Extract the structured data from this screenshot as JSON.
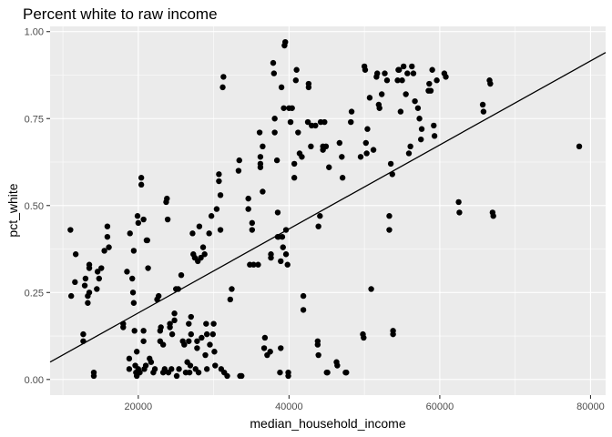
{
  "chart_data": {
    "type": "scatter",
    "title": "Percent white to raw income",
    "xlabel": "median_household_income",
    "ylabel": "pct_white",
    "xlim": [
      8300,
      82000
    ],
    "ylim": [
      -0.045,
      1.015
    ],
    "x_ticks": [
      20000,
      40000,
      60000,
      80000
    ],
    "x_tick_labels": [
      "20000",
      "40000",
      "60000",
      "80000"
    ],
    "y_ticks": [
      0.0,
      0.25,
      0.5,
      0.75,
      1.0
    ],
    "y_tick_labels": [
      "0.00",
      "0.25",
      "0.50",
      "0.75",
      "1.00"
    ],
    "grid": true,
    "panel_background": "#ebebeb",
    "grid_color": "#ffffff",
    "point_color": "#000000",
    "line_color": "#000000",
    "trend_line": {
      "x": [
        8300,
        82000
      ],
      "y": [
        0.05,
        0.94
      ]
    },
    "points": [
      [
        11000,
        0.43
      ],
      [
        11100,
        0.24
      ],
      [
        11600,
        0.28
      ],
      [
        11700,
        0.36
      ],
      [
        12700,
        0.13
      ],
      [
        12700,
        0.11
      ],
      [
        12900,
        0.27
      ],
      [
        13000,
        0.29
      ],
      [
        13300,
        0.22
      ],
      [
        13300,
        0.24
      ],
      [
        13500,
        0.25
      ],
      [
        13500,
        0.32
      ],
      [
        13500,
        0.33
      ],
      [
        14100,
        0.02
      ],
      [
        14100,
        0.01
      ],
      [
        14500,
        0.26
      ],
      [
        14600,
        0.31
      ],
      [
        14800,
        0.29
      ],
      [
        15100,
        0.32
      ],
      [
        15500,
        0.37
      ],
      [
        15900,
        0.44
      ],
      [
        15900,
        0.41
      ],
      [
        16100,
        0.38
      ],
      [
        18000,
        0.16
      ],
      [
        18000,
        0.15
      ],
      [
        18500,
        0.31
      ],
      [
        18800,
        0.06
      ],
      [
        18800,
        0.03
      ],
      [
        18900,
        0.42
      ],
      [
        19200,
        0.29
      ],
      [
        19300,
        0.25
      ],
      [
        19400,
        0.37
      ],
      [
        19400,
        0.22
      ],
      [
        19500,
        0.14
      ],
      [
        19600,
        0.04
      ],
      [
        19700,
        0.02
      ],
      [
        19800,
        0.08
      ],
      [
        19800,
        0.01
      ],
      [
        19900,
        0.47
      ],
      [
        20000,
        0.45
      ],
      [
        20000,
        0.03
      ],
      [
        20200,
        0.02
      ],
      [
        20400,
        0.56
      ],
      [
        20400,
        0.58
      ],
      [
        20700,
        0.46
      ],
      [
        20700,
        0.11
      ],
      [
        20700,
        0.14
      ],
      [
        20800,
        0.03
      ],
      [
        21000,
        0.04
      ],
      [
        21100,
        0.4
      ],
      [
        21200,
        0.4
      ],
      [
        21300,
        0.32
      ],
      [
        21500,
        0.06
      ],
      [
        21700,
        0.05
      ],
      [
        22000,
        0.02
      ],
      [
        22200,
        0.03
      ],
      [
        22500,
        0.23
      ],
      [
        22700,
        0.24
      ],
      [
        22900,
        0.11
      ],
      [
        22900,
        0.14
      ],
      [
        23000,
        0.15
      ],
      [
        23300,
        0.1
      ],
      [
        23300,
        0.02
      ],
      [
        23500,
        0.03
      ],
      [
        23700,
        0.51
      ],
      [
        23800,
        0.52
      ],
      [
        23900,
        0.46
      ],
      [
        24000,
        0.02
      ],
      [
        24200,
        0.16
      ],
      [
        24200,
        0.15
      ],
      [
        24400,
        0.03
      ],
      [
        24500,
        0.13
      ],
      [
        24800,
        0.19
      ],
      [
        24800,
        0.17
      ],
      [
        25000,
        0.26
      ],
      [
        25100,
        0.01
      ],
      [
        25300,
        0.26
      ],
      [
        25400,
        0.03
      ],
      [
        25700,
        0.3
      ],
      [
        25900,
        0.11
      ],
      [
        26100,
        0.1
      ],
      [
        26300,
        0.02
      ],
      [
        26500,
        0.05
      ],
      [
        26700,
        0.16
      ],
      [
        26700,
        0.11
      ],
      [
        26800,
        0.02
      ],
      [
        26900,
        0.04
      ],
      [
        27000,
        0.18
      ],
      [
        27000,
        0.13
      ],
      [
        27200,
        0.42
      ],
      [
        27300,
        0.36
      ],
      [
        27500,
        0.35
      ],
      [
        27600,
        0.03
      ],
      [
        27800,
        0.11
      ],
      [
        27800,
        0.09
      ],
      [
        27900,
        0.34
      ],
      [
        28000,
        0.02
      ],
      [
        28100,
        0.44
      ],
      [
        28300,
        0.35
      ],
      [
        28400,
        0.12
      ],
      [
        28600,
        0.38
      ],
      [
        28800,
        0.36
      ],
      [
        28900,
        0.07
      ],
      [
        29000,
        0.16
      ],
      [
        29100,
        0.13
      ],
      [
        29100,
        0.03
      ],
      [
        29400,
        0.42
      ],
      [
        29500,
        0.1
      ],
      [
        29700,
        0.47
      ],
      [
        29900,
        0.13
      ],
      [
        30000,
        0.16
      ],
      [
        30100,
        0.08
      ],
      [
        30200,
        0.04
      ],
      [
        30400,
        0.49
      ],
      [
        30700,
        0.57
      ],
      [
        30700,
        0.59
      ],
      [
        30900,
        0.53
      ],
      [
        30900,
        0.43
      ],
      [
        31000,
        0.03
      ],
      [
        31200,
        0.84
      ],
      [
        31300,
        0.87
      ],
      [
        31400,
        0.02
      ],
      [
        31800,
        0.01
      ],
      [
        32200,
        0.23
      ],
      [
        32400,
        0.26
      ],
      [
        33300,
        0.6
      ],
      [
        33400,
        0.63
      ],
      [
        33500,
        0.01
      ],
      [
        33700,
        0.01
      ],
      [
        34600,
        0.49
      ],
      [
        34600,
        0.52
      ],
      [
        34800,
        0.33
      ],
      [
        35100,
        0.43
      ],
      [
        35100,
        0.45
      ],
      [
        35300,
        0.33
      ],
      [
        35900,
        0.33
      ],
      [
        36100,
        0.71
      ],
      [
        36200,
        0.61
      ],
      [
        36200,
        0.62
      ],
      [
        36200,
        0.64
      ],
      [
        36500,
        0.67
      ],
      [
        36500,
        0.54
      ],
      [
        36700,
        0.09
      ],
      [
        36800,
        0.12
      ],
      [
        37100,
        0.07
      ],
      [
        37500,
        0.08
      ],
      [
        37600,
        0.36
      ],
      [
        37600,
        0.35
      ],
      [
        37900,
        0.91
      ],
      [
        38000,
        0.88
      ],
      [
        38100,
        0.75
      ],
      [
        38100,
        0.71
      ],
      [
        38400,
        0.63
      ],
      [
        38500,
        0.41
      ],
      [
        38500,
        0.48
      ],
      [
        38600,
        0.41
      ],
      [
        38800,
        0.02
      ],
      [
        38900,
        0.34
      ],
      [
        38900,
        0.09
      ],
      [
        39000,
        0.84
      ],
      [
        39100,
        0.41
      ],
      [
        39200,
        0.38
      ],
      [
        39300,
        0.78
      ],
      [
        39400,
        0.96
      ],
      [
        39500,
        0.97
      ],
      [
        39600,
        0.43
      ],
      [
        39600,
        0.36
      ],
      [
        39800,
        0.33
      ],
      [
        39900,
        0.01
      ],
      [
        39900,
        0.02
      ],
      [
        40000,
        0.78
      ],
      [
        40200,
        0.74
      ],
      [
        40400,
        0.78
      ],
      [
        40700,
        0.58
      ],
      [
        40700,
        0.62
      ],
      [
        40900,
        0.86
      ],
      [
        41000,
        0.89
      ],
      [
        41200,
        0.71
      ],
      [
        41400,
        0.65
      ],
      [
        41700,
        0.64
      ],
      [
        41900,
        0.24
      ],
      [
        41900,
        0.2
      ],
      [
        42500,
        0.74
      ],
      [
        42600,
        0.85
      ],
      [
        42600,
        0.84
      ],
      [
        42900,
        0.67
      ],
      [
        43000,
        0.73
      ],
      [
        43500,
        0.73
      ],
      [
        43800,
        0.1
      ],
      [
        43800,
        0.11
      ],
      [
        43900,
        0.07
      ],
      [
        43900,
        0.44
      ],
      [
        44100,
        0.47
      ],
      [
        44200,
        0.74
      ],
      [
        44500,
        0.67
      ],
      [
        44500,
        0.66
      ],
      [
        44700,
        0.74
      ],
      [
        44900,
        0.67
      ],
      [
        45000,
        0.02
      ],
      [
        45100,
        0.02
      ],
      [
        45300,
        0.61
      ],
      [
        46300,
        0.05
      ],
      [
        46400,
        0.04
      ],
      [
        46700,
        0.68
      ],
      [
        47000,
        0.64
      ],
      [
        47100,
        0.58
      ],
      [
        47500,
        0.02
      ],
      [
        47600,
        0.02
      ],
      [
        48200,
        0.74
      ],
      [
        48300,
        0.77
      ],
      [
        49500,
        0.64
      ],
      [
        49800,
        0.13
      ],
      [
        49900,
        0.12
      ],
      [
        50000,
        0.9
      ],
      [
        50100,
        0.89
      ],
      [
        50200,
        0.68
      ],
      [
        50300,
        0.65
      ],
      [
        50400,
        0.72
      ],
      [
        50700,
        0.81
      ],
      [
        50900,
        0.26
      ],
      [
        51200,
        0.66
      ],
      [
        51600,
        0.87
      ],
      [
        51700,
        0.88
      ],
      [
        51900,
        0.79
      ],
      [
        52000,
        0.78
      ],
      [
        52300,
        0.82
      ],
      [
        52700,
        0.88
      ],
      [
        53000,
        0.86
      ],
      [
        53300,
        0.47
      ],
      [
        53300,
        0.43
      ],
      [
        53500,
        0.62
      ],
      [
        53700,
        0.59
      ],
      [
        53800,
        0.14
      ],
      [
        53800,
        0.13
      ],
      [
        54400,
        0.86
      ],
      [
        54500,
        0.89
      ],
      [
        54600,
        0.89
      ],
      [
        54800,
        0.77
      ],
      [
        55000,
        0.86
      ],
      [
        55200,
        0.9
      ],
      [
        55500,
        0.82
      ],
      [
        55700,
        0.88
      ],
      [
        55900,
        0.65
      ],
      [
        56100,
        0.67
      ],
      [
        56300,
        0.9
      ],
      [
        56500,
        0.88
      ],
      [
        56700,
        0.8
      ],
      [
        57100,
        0.78
      ],
      [
        57300,
        0.75
      ],
      [
        57500,
        0.69
      ],
      [
        57600,
        0.72
      ],
      [
        58500,
        0.83
      ],
      [
        58600,
        0.85
      ],
      [
        58800,
        0.83
      ],
      [
        59000,
        0.89
      ],
      [
        59200,
        0.73
      ],
      [
        59300,
        0.7
      ],
      [
        59600,
        0.86
      ],
      [
        60600,
        0.88
      ],
      [
        60800,
        0.87
      ],
      [
        62500,
        0.51
      ],
      [
        62600,
        0.48
      ],
      [
        65700,
        0.79
      ],
      [
        65800,
        0.77
      ],
      [
        66600,
        0.86
      ],
      [
        66700,
        0.85
      ],
      [
        67000,
        0.48
      ],
      [
        67100,
        0.47
      ],
      [
        78500,
        0.67
      ]
    ]
  }
}
